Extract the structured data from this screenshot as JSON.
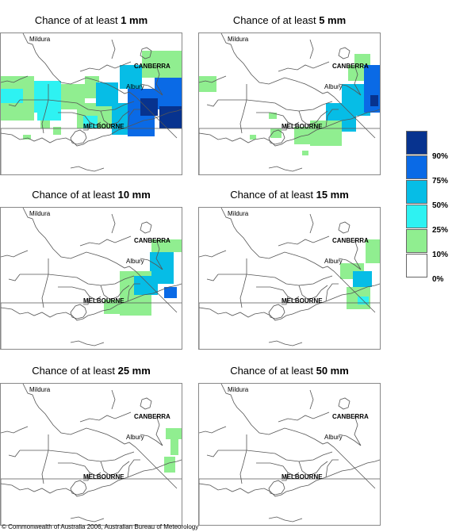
{
  "panels": [
    {
      "prefix": "Chance of at least ",
      "amount": "1 mm"
    },
    {
      "prefix": "Chance of at least ",
      "amount": "5 mm"
    },
    {
      "prefix": "Chance of at least ",
      "amount": "10 mm"
    },
    {
      "prefix": "Chance of at least ",
      "amount": "15 mm"
    },
    {
      "prefix": "Chance of at least ",
      "amount": "25 mm"
    },
    {
      "prefix": "Chance of at least ",
      "amount": "50 mm"
    }
  ],
  "places": {
    "mildura": "Mildura",
    "canberra": "CANBERRA",
    "albury": "Albury",
    "melbourne": "MELBOURNE"
  },
  "legend": {
    "labels": [
      "90%",
      "75%",
      "50%",
      "25%",
      "10%",
      "0%"
    ],
    "colors": [
      "#07338f",
      "#0a6ae6",
      "#06bde6",
      "#2ef2f2",
      "#90ee90",
      "#ffffff"
    ]
  },
  "copyright": "© Commonwealth of Australia 2006, Australian Bureau of Meteorology"
}
